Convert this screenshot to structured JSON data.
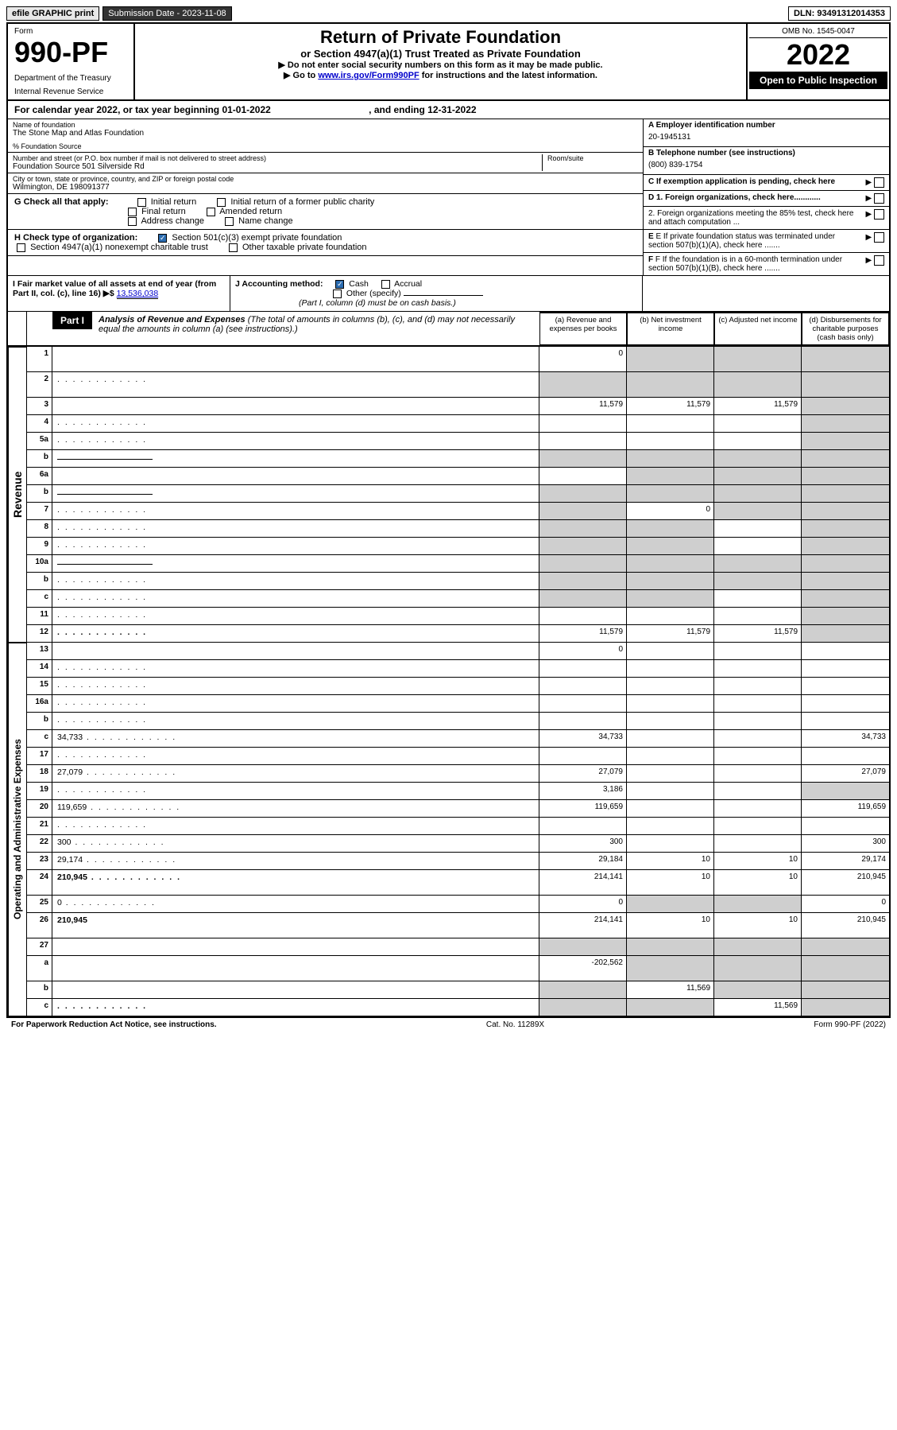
{
  "topbar": {
    "efile": "efile GRAPHIC print",
    "subdate_label": "Submission Date - 2023-11-08",
    "dln": "DLN: 93491312014353"
  },
  "header": {
    "form_word": "Form",
    "form_no": "990-PF",
    "dept1": "Department of the Treasury",
    "dept2": "Internal Revenue Service",
    "title": "Return of Private Foundation",
    "subtitle": "or Section 4947(a)(1) Trust Treated as Private Foundation",
    "instr1": "▶ Do not enter social security numbers on this form as it may be made public.",
    "instr2_pre": "▶ Go to ",
    "instr2_link": "www.irs.gov/Form990PF",
    "instr2_post": " for instructions and the latest information.",
    "omb": "OMB No. 1545-0047",
    "year": "2022",
    "open_public": "Open to Public Inspection"
  },
  "cal_year": {
    "pre": "For calendar year 2022, or tax year beginning 01-01-2022",
    "end": ", and ending 12-31-2022"
  },
  "info": {
    "name_lab": "Name of foundation",
    "name": "The Stone Map and Atlas Foundation",
    "care_lab": "% Foundation Source",
    "addr_lab": "Number and street (or P.O. box number if mail is not delivered to street address)",
    "addr": "Foundation Source 501 Silverside Rd",
    "room_lab": "Room/suite",
    "city_lab": "City or town, state or province, country, and ZIP or foreign postal code",
    "city": "Wilmington, DE  198091377",
    "a_lab": "A Employer identification number",
    "a_val": "20-1945131",
    "b_lab": "B Telephone number (see instructions)",
    "b_val": "(800) 839-1754",
    "c_lab": "C If exemption application is pending, check here",
    "d1": "D 1. Foreign organizations, check here............",
    "d2": "2. Foreign organizations meeting the 85% test, check here and attach computation ...",
    "e": "E If private foundation status was terminated under section 507(b)(1)(A), check here .......",
    "f": "F If the foundation is in a 60-month termination under section 507(b)(1)(B), check here .......",
    "g": "G Check all that apply:",
    "g_opts": [
      "Initial return",
      "Initial return of a former public charity",
      "Final return",
      "Amended return",
      "Address change",
      "Name change"
    ],
    "h": "H Check type of organization:",
    "h1": "Section 501(c)(3) exempt private foundation",
    "h2": "Section 4947(a)(1) nonexempt charitable trust",
    "h3": "Other taxable private foundation",
    "i_lab": "I Fair market value of all assets at end of year (from Part II, col. (c), line 16) ▶$ ",
    "i_val": "13,536,038",
    "j_lab": "J Accounting method:",
    "j_cash": "Cash",
    "j_accr": "Accrual",
    "j_other": "Other (specify)",
    "j_note": "(Part I, column (d) must be on cash basis.)"
  },
  "part1": {
    "label": "Part I",
    "title": "Analysis of Revenue and Expenses",
    "title_note": "(The total of amounts in columns (b), (c), and (d) may not necessarily equal the amounts in column (a) (see instructions).)",
    "cols": {
      "a": "(a) Revenue and expenses per books",
      "b": "(b) Net investment income",
      "c": "(c) Adjusted net income",
      "d": "(d) Disbursements for charitable purposes (cash basis only)"
    }
  },
  "side_labels": {
    "rev": "Revenue",
    "exp": "Operating and Administrative Expenses"
  },
  "rows": [
    {
      "n": "1",
      "d": "",
      "a": "0",
      "b": "",
      "c": "",
      "bg": true,
      "cg": true,
      "dg": true,
      "tall": true
    },
    {
      "n": "2",
      "d": "",
      "a": "",
      "b": "",
      "c": "",
      "ag": true,
      "bg": true,
      "cg": true,
      "dg": true,
      "tall": true,
      "dots": true
    },
    {
      "n": "3",
      "d": "",
      "a": "11,579",
      "b": "11,579",
      "c": "11,579",
      "dg": true
    },
    {
      "n": "4",
      "d": "",
      "a": "",
      "b": "",
      "c": "",
      "dg": true,
      "dots": true
    },
    {
      "n": "5a",
      "d": "",
      "a": "",
      "b": "",
      "c": "",
      "dg": true,
      "dots": true
    },
    {
      "n": "b",
      "d": "",
      "a": "",
      "b": "",
      "c": "",
      "ag": true,
      "bg": true,
      "cg": true,
      "dg": true,
      "inline": true
    },
    {
      "n": "6a",
      "d": "",
      "a": "",
      "b": "",
      "c": "",
      "bg": true,
      "cg": true,
      "dg": true
    },
    {
      "n": "b",
      "d": "",
      "a": "",
      "b": "",
      "c": "",
      "ag": true,
      "bg": true,
      "cg": true,
      "dg": true,
      "inline": true
    },
    {
      "n": "7",
      "d": "",
      "a": "",
      "b": "0",
      "c": "",
      "ag": true,
      "cg": true,
      "dg": true,
      "dots": true
    },
    {
      "n": "8",
      "d": "",
      "a": "",
      "b": "",
      "c": "",
      "ag": true,
      "bg": true,
      "dg": true,
      "dots": true
    },
    {
      "n": "9",
      "d": "",
      "a": "",
      "b": "",
      "c": "",
      "ag": true,
      "bg": true,
      "dg": true,
      "dots": true
    },
    {
      "n": "10a",
      "d": "",
      "a": "",
      "b": "",
      "c": "",
      "ag": true,
      "bg": true,
      "cg": true,
      "dg": true,
      "inline": true
    },
    {
      "n": "b",
      "d": "",
      "a": "",
      "b": "",
      "c": "",
      "ag": true,
      "bg": true,
      "cg": true,
      "dg": true,
      "inline": true,
      "dots": true
    },
    {
      "n": "c",
      "d": "",
      "a": "",
      "b": "",
      "c": "",
      "ag": true,
      "bg": true,
      "dg": true,
      "dots": true
    },
    {
      "n": "11",
      "d": "",
      "a": "",
      "b": "",
      "c": "",
      "dg": true,
      "dots": true
    },
    {
      "n": "12",
      "d": "",
      "a": "11,579",
      "b": "11,579",
      "c": "11,579",
      "dg": true,
      "bold": true,
      "dots": true
    },
    {
      "n": "13",
      "d": "",
      "a": "0",
      "b": "",
      "c": ""
    },
    {
      "n": "14",
      "d": "",
      "a": "",
      "b": "",
      "c": "",
      "dots": true
    },
    {
      "n": "15",
      "d": "",
      "a": "",
      "b": "",
      "c": "",
      "dots": true
    },
    {
      "n": "16a",
      "d": "",
      "a": "",
      "b": "",
      "c": "",
      "dots": true
    },
    {
      "n": "b",
      "d": "",
      "a": "",
      "b": "",
      "c": "",
      "dots": true
    },
    {
      "n": "c",
      "d": "34,733",
      "a": "34,733",
      "b": "",
      "c": "",
      "dots": true
    },
    {
      "n": "17",
      "d": "",
      "a": "",
      "b": "",
      "c": "",
      "dots": true
    },
    {
      "n": "18",
      "d": "27,079",
      "a": "27,079",
      "b": "",
      "c": "",
      "dots": true
    },
    {
      "n": "19",
      "d": "",
      "a": "3,186",
      "b": "",
      "c": "",
      "dg": true,
      "dots": true
    },
    {
      "n": "20",
      "d": "119,659",
      "a": "119,659",
      "b": "",
      "c": "",
      "dots": true
    },
    {
      "n": "21",
      "d": "",
      "a": "",
      "b": "",
      "c": "",
      "dots": true
    },
    {
      "n": "22",
      "d": "300",
      "a": "300",
      "b": "",
      "c": "",
      "dots": true
    },
    {
      "n": "23",
      "d": "29,174",
      "a": "29,184",
      "b": "10",
      "c": "10",
      "dots": true
    },
    {
      "n": "24",
      "d": "210,945",
      "a": "214,141",
      "b": "10",
      "c": "10",
      "bold": true,
      "tall": true,
      "dots": true
    },
    {
      "n": "25",
      "d": "0",
      "a": "0",
      "b": "",
      "c": "",
      "bg": true,
      "cg": true,
      "dots": true
    },
    {
      "n": "26",
      "d": "210,945",
      "a": "214,141",
      "b": "10",
      "c": "10",
      "bold": true,
      "tall": true
    },
    {
      "n": "27",
      "d": "",
      "a": "",
      "b": "",
      "c": "",
      "ag": true,
      "bg": true,
      "cg": true,
      "dg": true
    },
    {
      "n": "a",
      "d": "",
      "a": "-202,562",
      "b": "",
      "c": "",
      "bg": true,
      "cg": true,
      "dg": true,
      "bold": true,
      "tall": true
    },
    {
      "n": "b",
      "d": "",
      "a": "",
      "b": "11,569",
      "c": "",
      "ag": true,
      "cg": true,
      "dg": true,
      "bold": true
    },
    {
      "n": "c",
      "d": "",
      "a": "",
      "b": "",
      "c": "11,569",
      "ag": true,
      "bg": true,
      "dg": true,
      "bold": true,
      "dots": true
    }
  ],
  "footer": {
    "left": "For Paperwork Reduction Act Notice, see instructions.",
    "mid": "Cat. No. 11289X",
    "right": "Form 990-PF (2022)"
  }
}
